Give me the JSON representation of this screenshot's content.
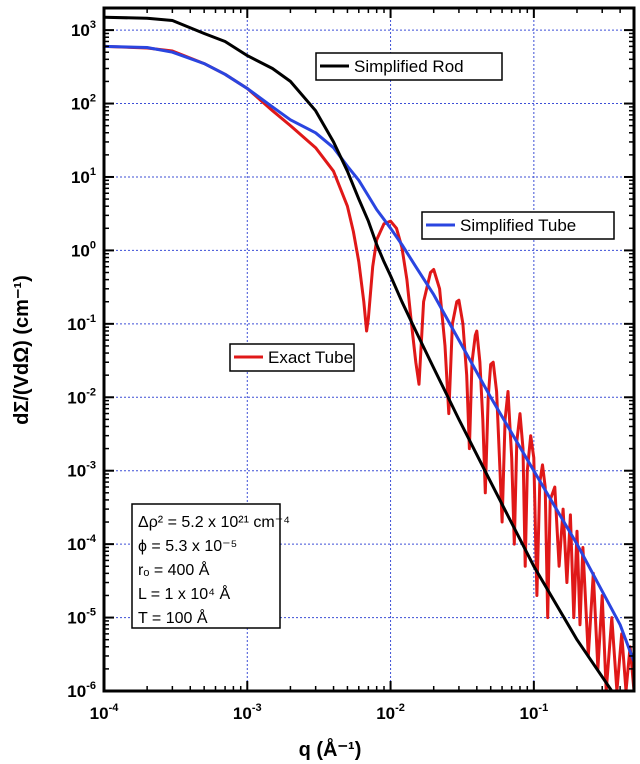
{
  "chart_data": {
    "type": "line",
    "title": "",
    "xlabel": "q (Å⁻¹)",
    "ylabel": "dΣ/(VdΩ) (cm⁻¹)",
    "xscale": "log",
    "yscale": "log",
    "xlim": [
      0.0001,
      0.5
    ],
    "ylim": [
      1e-06,
      2000
    ],
    "grid": true,
    "x_ticks": [
      {
        "value": 0.0001,
        "base": "10",
        "exp": "-4"
      },
      {
        "value": 0.001,
        "base": "10",
        "exp": "-3"
      },
      {
        "value": 0.01,
        "base": "10",
        "exp": "-2"
      },
      {
        "value": 0.1,
        "base": "10",
        "exp": "-1"
      }
    ],
    "y_ticks": [
      {
        "value": 1000,
        "base": "10",
        "exp": "3"
      },
      {
        "value": 100,
        "base": "10",
        "exp": "2"
      },
      {
        "value": 10,
        "base": "10",
        "exp": "1"
      },
      {
        "value": 1,
        "base": "10",
        "exp": "0"
      },
      {
        "value": 0.1,
        "base": "10",
        "exp": "-1"
      },
      {
        "value": 0.01,
        "base": "10",
        "exp": "-2"
      },
      {
        "value": 0.001,
        "base": "10",
        "exp": "-3"
      },
      {
        "value": 0.0001,
        "base": "10",
        "exp": "-4"
      },
      {
        "value": 1e-05,
        "base": "10",
        "exp": "-5"
      },
      {
        "value": 1e-06,
        "base": "10",
        "exp": "-6"
      }
    ],
    "series": [
      {
        "name": "Simplified Rod",
        "color": "#000000",
        "x": [
          0.0001,
          0.0002,
          0.0003,
          0.0005,
          0.0007,
          0.001,
          0.0015,
          0.002,
          0.003,
          0.004,
          0.005,
          0.006,
          0.007,
          0.008,
          0.009,
          0.01,
          0.012,
          0.015,
          0.02,
          0.03,
          0.05,
          0.1,
          0.2,
          0.35
        ],
        "y": [
          1500,
          1450,
          1350,
          900,
          700,
          450,
          300,
          200,
          80,
          30,
          12,
          5,
          2.5,
          1.2,
          0.7,
          0.45,
          0.2,
          0.08,
          0.025,
          0.005,
          0.0007,
          5e-05,
          5e-06,
          1e-06
        ]
      },
      {
        "name": "Simplified Tube",
        "color": "#2a45e0",
        "x": [
          0.0001,
          0.0002,
          0.0003,
          0.0005,
          0.0007,
          0.001,
          0.0015,
          0.002,
          0.003,
          0.004,
          0.005,
          0.006,
          0.007,
          0.008,
          0.01,
          0.012,
          0.015,
          0.02,
          0.03,
          0.05,
          0.1,
          0.2,
          0.4,
          0.5
        ],
        "y": [
          600,
          580,
          500,
          350,
          250,
          160,
          90,
          60,
          40,
          25,
          14,
          9,
          5.5,
          3.6,
          2.0,
          1.2,
          0.6,
          0.25,
          0.06,
          0.01,
          0.001,
          0.0001,
          8e-06,
          2.5e-06
        ]
      },
      {
        "name": "Exact Tube",
        "color": "#e01818",
        "x": [
          0.0001,
          0.0002,
          0.0003,
          0.0005,
          0.0007,
          0.001,
          0.0015,
          0.002,
          0.003,
          0.004,
          0.005,
          0.0055,
          0.006,
          0.0065,
          0.0068,
          0.007,
          0.0075,
          0.008,
          0.009,
          0.01,
          0.011,
          0.012,
          0.013,
          0.014,
          0.015,
          0.0158,
          0.017,
          0.019,
          0.02,
          0.022,
          0.024,
          0.0255,
          0.027,
          0.029,
          0.03,
          0.032,
          0.034,
          0.0355,
          0.037,
          0.039,
          0.04,
          0.042,
          0.044,
          0.0458,
          0.048,
          0.05,
          0.052,
          0.055,
          0.058,
          0.06,
          0.063,
          0.066,
          0.07,
          0.073,
          0.076,
          0.08,
          0.084,
          0.087,
          0.09,
          0.095,
          0.1,
          0.105,
          0.11,
          0.115,
          0.12,
          0.125,
          0.13,
          0.14,
          0.15,
          0.16,
          0.17,
          0.18,
          0.19,
          0.2,
          0.21,
          0.22,
          0.24,
          0.26,
          0.28,
          0.3,
          0.32,
          0.35,
          0.38,
          0.41,
          0.44,
          0.47,
          0.5
        ],
        "y": [
          600,
          570,
          520,
          350,
          250,
          160,
          80,
          50,
          25,
          12,
          4,
          1.8,
          0.7,
          0.2,
          0.08,
          0.12,
          0.6,
          1.4,
          2.3,
          2.5,
          2.0,
          1.1,
          0.4,
          0.1,
          0.03,
          0.015,
          0.2,
          0.5,
          0.55,
          0.3,
          0.05,
          0.006,
          0.1,
          0.2,
          0.21,
          0.1,
          0.02,
          0.002,
          0.03,
          0.07,
          0.08,
          0.03,
          0.005,
          0.0005,
          0.01,
          0.028,
          0.03,
          0.012,
          0.001,
          0.0002,
          0.005,
          0.012,
          0.0015,
          0.0001,
          0.0025,
          0.006,
          0.002,
          5e-05,
          0.001,
          0.003,
          0.0015,
          2e-05,
          0.0007,
          0.0012,
          0.0006,
          1e-05,
          0.0004,
          0.0006,
          5e-05,
          0.0003,
          3e-05,
          0.00025,
          1e-05,
          0.00015,
          8e-06,
          9e-05,
          3e-06,
          4e-05,
          2e-06,
          2e-05,
          1e-06,
          1e-05,
          1e-06,
          6e-06,
          1e-06,
          4e-06,
          1e-06
        ]
      }
    ],
    "legend": [
      {
        "label": "Simplified Rod",
        "color": "#000000"
      },
      {
        "label": "Simplified Tube",
        "color": "#2a45e0"
      },
      {
        "label": "Exact Tube",
        "color": "#e01818"
      }
    ],
    "annotation": {
      "lines": [
        "Δρ² = 5.2 x 10²¹ cm⁻⁴",
        "ϕ = 5.3 x 10⁻⁵",
        "rₒ = 400 Å",
        "L = 1 x 10⁴ Å",
        "T = 100 Å"
      ]
    }
  }
}
